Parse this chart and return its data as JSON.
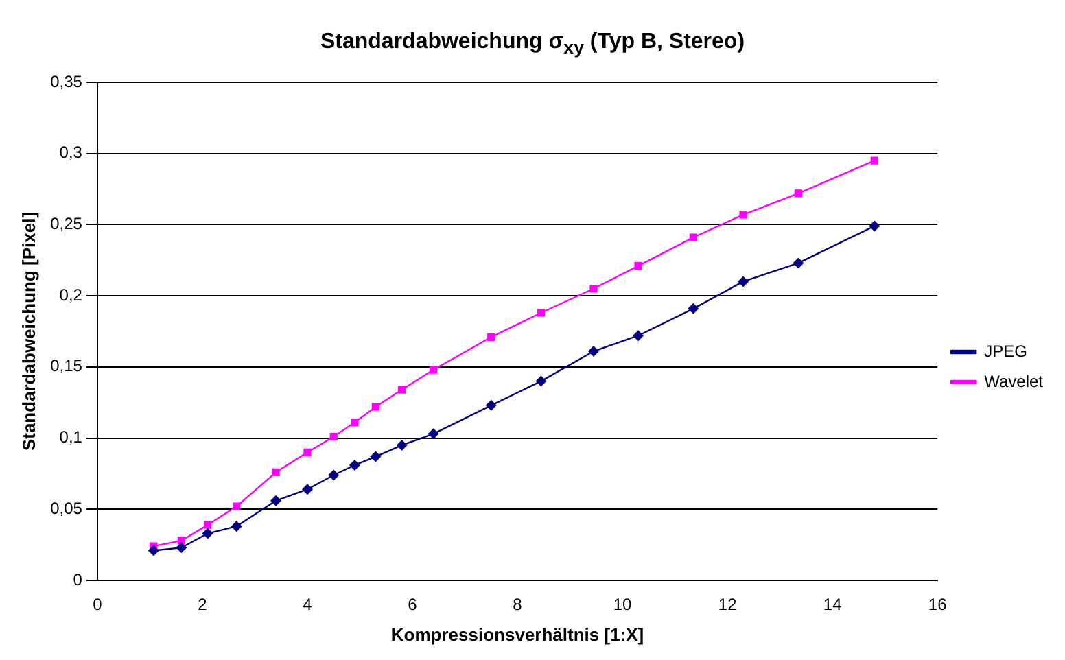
{
  "chart_data": {
    "type": "line",
    "title": "Standardabweichung σ$_{xy}$ (Typ B, Stereo)",
    "xlabel": "Kompressionsverhältnis [1:X]",
    "ylabel": "Standardabweichung [Pixel]",
    "x": [
      1.07,
      1.6,
      2.1,
      2.65,
      3.4,
      4.0,
      4.5,
      4.9,
      5.3,
      5.8,
      6.4,
      7.5,
      8.45,
      9.45,
      10.3,
      11.35,
      12.3,
      13.35,
      14.8
    ],
    "series": [
      {
        "name": "JPEG",
        "color": "#000080",
        "marker": "diamond",
        "values": [
          0.021,
          0.023,
          0.033,
          0.038,
          0.056,
          0.064,
          0.074,
          0.081,
          0.087,
          0.095,
          0.103,
          0.123,
          0.14,
          0.161,
          0.172,
          0.191,
          0.21,
          0.223,
          0.249
        ]
      },
      {
        "name": "Wavelet",
        "color": "#ff00ff",
        "marker": "square",
        "values": [
          0.024,
          0.028,
          0.039,
          0.052,
          0.076,
          0.09,
          0.101,
          0.111,
          0.122,
          0.134,
          0.148,
          0.171,
          0.188,
          0.205,
          0.221,
          0.241,
          0.257,
          0.272,
          0.295
        ]
      }
    ],
    "xlim": [
      0,
      16
    ],
    "xticks": [
      0,
      2,
      4,
      6,
      8,
      10,
      12,
      14,
      16
    ],
    "ylim": [
      0,
      0.35
    ],
    "yticks": [
      {
        "value": 0,
        "label": "0"
      },
      {
        "value": 0.05,
        "label": "0,05"
      },
      {
        "value": 0.1,
        "label": "0,1"
      },
      {
        "value": 0.15,
        "label": "0,15"
      },
      {
        "value": 0.2,
        "label": "0,2"
      },
      {
        "value": 0.25,
        "label": "0,25"
      },
      {
        "value": 0.3,
        "label": "0,3"
      },
      {
        "value": 0.35,
        "label": "0,35"
      }
    ],
    "grid": "y",
    "legend": "right"
  }
}
